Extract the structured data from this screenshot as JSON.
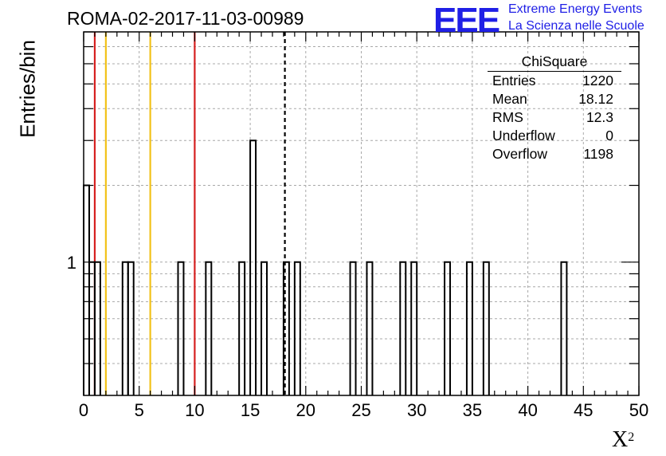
{
  "header": {
    "run_title": "ROMA-02-2017-11-03-00989",
    "logo_mark": "EEE",
    "logo_line1": "Extreme Energy Events",
    "logo_line2": "La Scienza nelle Scuole",
    "logo_color": "#1f1fe6"
  },
  "stats_box": {
    "title": "ChiSquare",
    "rows": [
      {
        "label": "Entries",
        "value": "1220"
      },
      {
        "label": "Mean",
        "value": "18.12"
      },
      {
        "label": "RMS",
        "value": "12.3"
      },
      {
        "label": "Underflow",
        "value": "0"
      },
      {
        "label": "Overflow",
        "value": "1198"
      }
    ]
  },
  "chart_data": {
    "type": "bar",
    "title": "ROMA-02-2017-11-03-00989",
    "xlabel": "X",
    "xlabel_superscript": "2",
    "ylabel": "Entries/bin",
    "xlim": [
      0,
      50
    ],
    "ylim_log": [
      0.3,
      8
    ],
    "yscale": "log",
    "grid": true,
    "bin_width": 0.5,
    "xticks": [
      "0",
      "5",
      "10",
      "15",
      "20",
      "25",
      "30",
      "35",
      "40",
      "45",
      "50"
    ],
    "yticks": [
      "1"
    ],
    "bins": [
      {
        "x": 0.0,
        "count": 2
      },
      {
        "x": 0.5,
        "count": 1
      },
      {
        "x": 1.0,
        "count": 1
      },
      {
        "x": 3.5,
        "count": 1
      },
      {
        "x": 4.0,
        "count": 1
      },
      {
        "x": 8.5,
        "count": 1
      },
      {
        "x": 11.0,
        "count": 1
      },
      {
        "x": 14.0,
        "count": 1
      },
      {
        "x": 15.0,
        "count": 3
      },
      {
        "x": 16.0,
        "count": 1
      },
      {
        "x": 18.0,
        "count": 1
      },
      {
        "x": 19.0,
        "count": 1
      },
      {
        "x": 24.0,
        "count": 1
      },
      {
        "x": 25.5,
        "count": 1
      },
      {
        "x": 28.5,
        "count": 1
      },
      {
        "x": 29.5,
        "count": 1
      },
      {
        "x": 32.5,
        "count": 1
      },
      {
        "x": 34.5,
        "count": 1
      },
      {
        "x": 36.0,
        "count": 1
      },
      {
        "x": 43.0,
        "count": 1
      }
    ],
    "reference_lines": [
      {
        "x": 1,
        "color": "#d62020",
        "style": "solid"
      },
      {
        "x": 2,
        "color": "#f2c21a",
        "style": "solid"
      },
      {
        "x": 6,
        "color": "#f2c21a",
        "style": "solid"
      },
      {
        "x": 10,
        "color": "#d62020",
        "style": "solid"
      },
      {
        "x": 18.12,
        "color": "#000000",
        "style": "dashed"
      }
    ]
  }
}
